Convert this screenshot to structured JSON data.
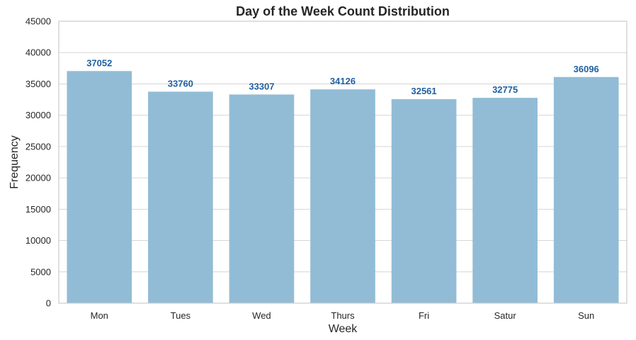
{
  "chart_data": {
    "type": "bar",
    "title": "Day of the Week Count Distribution",
    "xlabel": "Week",
    "ylabel": "Frequency",
    "categories": [
      "Mon",
      "Tues",
      "Wed",
      "Thurs",
      "Fri",
      "Satur",
      "Sun"
    ],
    "values": [
      37052,
      33760,
      33307,
      34126,
      32561,
      32775,
      36096
    ],
    "data_labels": [
      "37052",
      "33760",
      "33307",
      "34126",
      "32561",
      "32775",
      "36096"
    ],
    "ylim": [
      0,
      45000
    ],
    "yticks": [
      0,
      5000,
      10000,
      15000,
      20000,
      25000,
      30000,
      35000,
      40000,
      45000
    ],
    "ytick_labels": [
      "0",
      "5000",
      "10000",
      "15000",
      "20000",
      "25000",
      "30000",
      "35000",
      "40000",
      "45000"
    ],
    "grid": true,
    "colors": {
      "bar": "#92bcd5",
      "data_label": "#1f5fa0"
    }
  }
}
